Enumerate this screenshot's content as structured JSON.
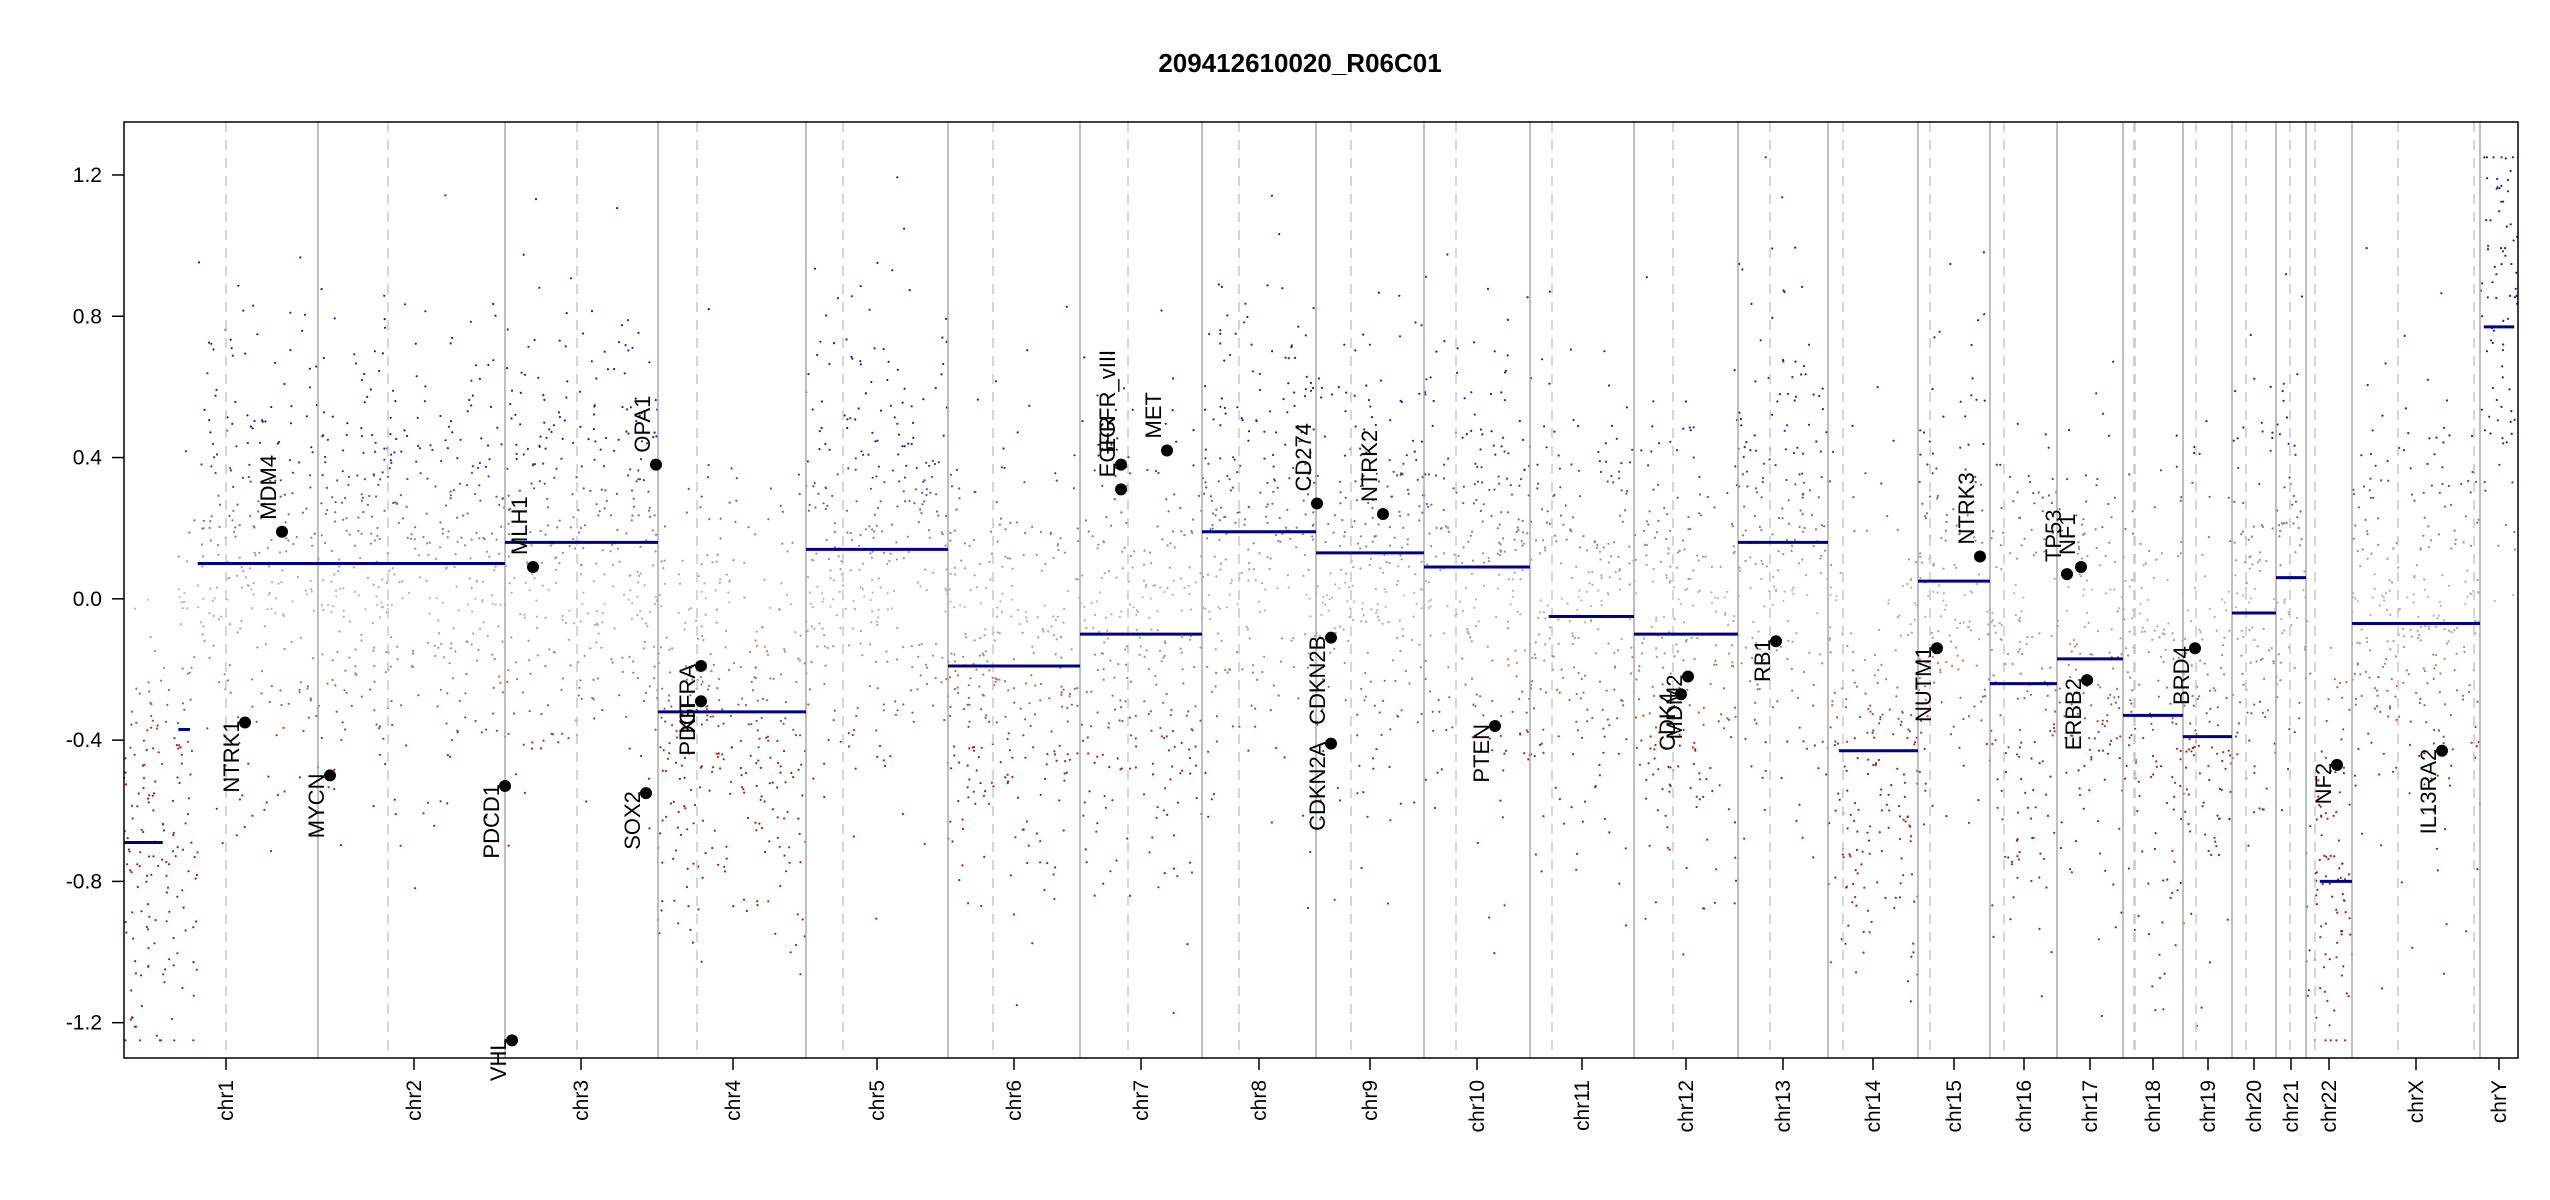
{
  "chart_data": {
    "type": "scatter",
    "title": "209412610020_R06C01",
    "xlabel": "",
    "ylabel": "",
    "ylim": [
      -1.3,
      1.35
    ],
    "yticks": [
      -1.2,
      -0.8,
      -0.4,
      0.0,
      0.4,
      0.8,
      1.2
    ],
    "ytick_labels": [
      "-1.2",
      "-0.8",
      "-0.4",
      "0.0",
      "0.4",
      "0.8",
      "1.2"
    ],
    "grid": false,
    "colors": {
      "gain": "#1a1aa6",
      "loss": "#a61a1a",
      "neutral": "#b0b0b0",
      "segment": "#00008b",
      "boundary": "#aaaaaa",
      "gene_point": "#000000"
    },
    "chromosomes": [
      {
        "name": "chr1",
        "segments": [
          {
            "value": -0.69,
            "fraction": [
              0,
              0.2
            ]
          },
          {
            "value": -0.37,
            "fraction": [
              0.28,
              0.34
            ]
          },
          {
            "value": 0.1,
            "fraction": [
              0.38,
              1
            ]
          }
        ]
      },
      {
        "name": "chr2",
        "segments": [
          {
            "value": 0.1,
            "fraction": [
              0,
              1
            ]
          }
        ]
      },
      {
        "name": "chr3",
        "segments": [
          {
            "value": 0.16,
            "fraction": [
              0,
              1
            ]
          }
        ]
      },
      {
        "name": "chr4",
        "segments": [
          {
            "value": -0.32,
            "fraction": [
              0,
              1
            ]
          }
        ]
      },
      {
        "name": "chr5",
        "segments": [
          {
            "value": 0.14,
            "fraction": [
              0,
              1
            ]
          }
        ]
      },
      {
        "name": "chr6",
        "segments": [
          {
            "value": -0.19,
            "fraction": [
              0,
              1
            ]
          }
        ]
      },
      {
        "name": "chr7",
        "segments": [
          {
            "value": -0.1,
            "fraction": [
              0,
              1
            ]
          }
        ]
      },
      {
        "name": "chr8",
        "segments": [
          {
            "value": 0.19,
            "fraction": [
              0,
              1
            ]
          }
        ]
      },
      {
        "name": "chr9",
        "segments": [
          {
            "value": 0.13,
            "fraction": [
              0,
              1
            ]
          }
        ]
      },
      {
        "name": "chr10",
        "segments": [
          {
            "value": 0.09,
            "fraction": [
              0,
              1
            ]
          }
        ]
      },
      {
        "name": "chr11",
        "segments": [
          {
            "value": -0.05,
            "fraction": [
              0.18,
              1
            ]
          }
        ]
      },
      {
        "name": "chr12",
        "segments": [
          {
            "value": -0.1,
            "fraction": [
              0,
              1
            ]
          }
        ]
      },
      {
        "name": "chr13",
        "segments": [
          {
            "value": 0.16,
            "fraction": [
              0,
              1
            ]
          }
        ]
      },
      {
        "name": "chr14",
        "segments": [
          {
            "value": -0.43,
            "fraction": [
              0.12,
              1
            ]
          }
        ]
      },
      {
        "name": "chr15",
        "segments": [
          {
            "value": 0.05,
            "fraction": [
              0,
              1
            ]
          }
        ]
      },
      {
        "name": "chr16",
        "segments": [
          {
            "value": -0.24,
            "fraction": [
              0,
              1
            ]
          }
        ]
      },
      {
        "name": "chr17",
        "segments": [
          {
            "value": -0.17,
            "fraction": [
              0,
              1
            ]
          }
        ]
      },
      {
        "name": "chr18",
        "segments": [
          {
            "value": -0.33,
            "fraction": [
              0,
              1
            ]
          }
        ]
      },
      {
        "name": "chr19",
        "segments": [
          {
            "value": -0.39,
            "fraction": [
              0,
              1
            ]
          }
        ]
      },
      {
        "name": "chr20",
        "segments": [
          {
            "value": -0.04,
            "fraction": [
              0,
              1
            ]
          }
        ]
      },
      {
        "name": "chr21",
        "segments": [
          {
            "value": 0.06,
            "fraction": [
              0,
              1
            ]
          }
        ]
      },
      {
        "name": "chr22",
        "segments": [
          {
            "value": -0.8,
            "fraction": [
              0.3,
              1
            ]
          }
        ]
      },
      {
        "name": "chrX",
        "segments": [
          {
            "value": -0.07,
            "fraction": [
              0,
              1
            ]
          }
        ]
      },
      {
        "name": "chrY",
        "segments": [
          {
            "value": 0.77,
            "fraction": [
              0.1,
              0.9
            ]
          }
        ]
      }
    ],
    "genes": [
      {
        "name": "NTRK1",
        "chrom": "chr1",
        "y": -0.35,
        "label_y": -0.35
      },
      {
        "name": "MDM4",
        "chrom": "chr1",
        "y": 0.19,
        "label_y": 0.19
      },
      {
        "name": "MYCN",
        "chrom": "chr2",
        "y": -0.5,
        "label_y": -0.5
      },
      {
        "name": "PDCD1",
        "chrom": "chr2",
        "y": -0.53,
        "label_y": -0.53
      },
      {
        "name": "VHL",
        "chrom": "chr3",
        "y": -1.25,
        "label_y": -1.25
      },
      {
        "name": "MLH1",
        "chrom": "chr3",
        "y": 0.09,
        "label_y": 0.09
      },
      {
        "name": "SOX2",
        "chrom": "chr3",
        "y": -0.55,
        "label_y": -0.55
      },
      {
        "name": "OPA1",
        "chrom": "chr3",
        "y": 0.38,
        "label_y": 0.38
      },
      {
        "name": "PDGFRA",
        "chrom": "chr4",
        "y": -0.19,
        "label_y": -0.19
      },
      {
        "name": "KIT",
        "chrom": "chr4",
        "y": -0.29,
        "label_y": -0.19
      },
      {
        "name": "EGFR",
        "chrom": "chr7",
        "y": 0.31,
        "label_y": 0.31
      },
      {
        "name": "EGFR_vIII",
        "chrom": "chr7",
        "y": 0.38,
        "label_y": 0.38
      },
      {
        "name": "MET",
        "chrom": "chr7",
        "y": 0.42,
        "label_y": 0.42
      },
      {
        "name": "CD274",
        "chrom": "chr9",
        "y": 0.27,
        "label_y": 0.27
      },
      {
        "name": "CDKN2A",
        "chrom": "chr9",
        "y": -0.41,
        "label_y": -0.41
      },
      {
        "name": "CDKN2B",
        "chrom": "chr9",
        "y": -0.11,
        "label_y": -0.11
      },
      {
        "name": "NTRK2",
        "chrom": "chr9",
        "y": 0.24,
        "label_y": 0.24
      },
      {
        "name": "PTEN",
        "chrom": "chr10",
        "y": -0.36,
        "label_y": -0.36
      },
      {
        "name": "CDK4",
        "chrom": "chr12",
        "y": -0.27,
        "label_y": -0.27
      },
      {
        "name": "MDM2",
        "chrom": "chr12",
        "y": -0.22,
        "label_y": -0.22
      },
      {
        "name": "RB1",
        "chrom": "chr13",
        "y": -0.12,
        "label_y": -0.12
      },
      {
        "name": "NUTM1",
        "chrom": "chr15",
        "y": -0.14,
        "label_y": -0.14
      },
      {
        "name": "NTRK3",
        "chrom": "chr15",
        "y": 0.12,
        "label_y": 0.12
      },
      {
        "name": "TP53",
        "chrom": "chr17",
        "y": 0.07,
        "label_y": 0.07
      },
      {
        "name": "NF1",
        "chrom": "chr17",
        "y": 0.09,
        "label_y": 0.09
      },
      {
        "name": "ERBB2",
        "chrom": "chr17",
        "y": -0.23,
        "label_y": -0.23
      },
      {
        "name": "BRD4",
        "chrom": "chr19",
        "y": -0.14,
        "label_y": -0.14
      },
      {
        "name": "NF2",
        "chrom": "chr22",
        "y": -0.47,
        "label_y": -0.47
      },
      {
        "name": "IL13RA2",
        "chrom": "chrX",
        "y": -0.43,
        "label_y": -0.43
      }
    ]
  }
}
